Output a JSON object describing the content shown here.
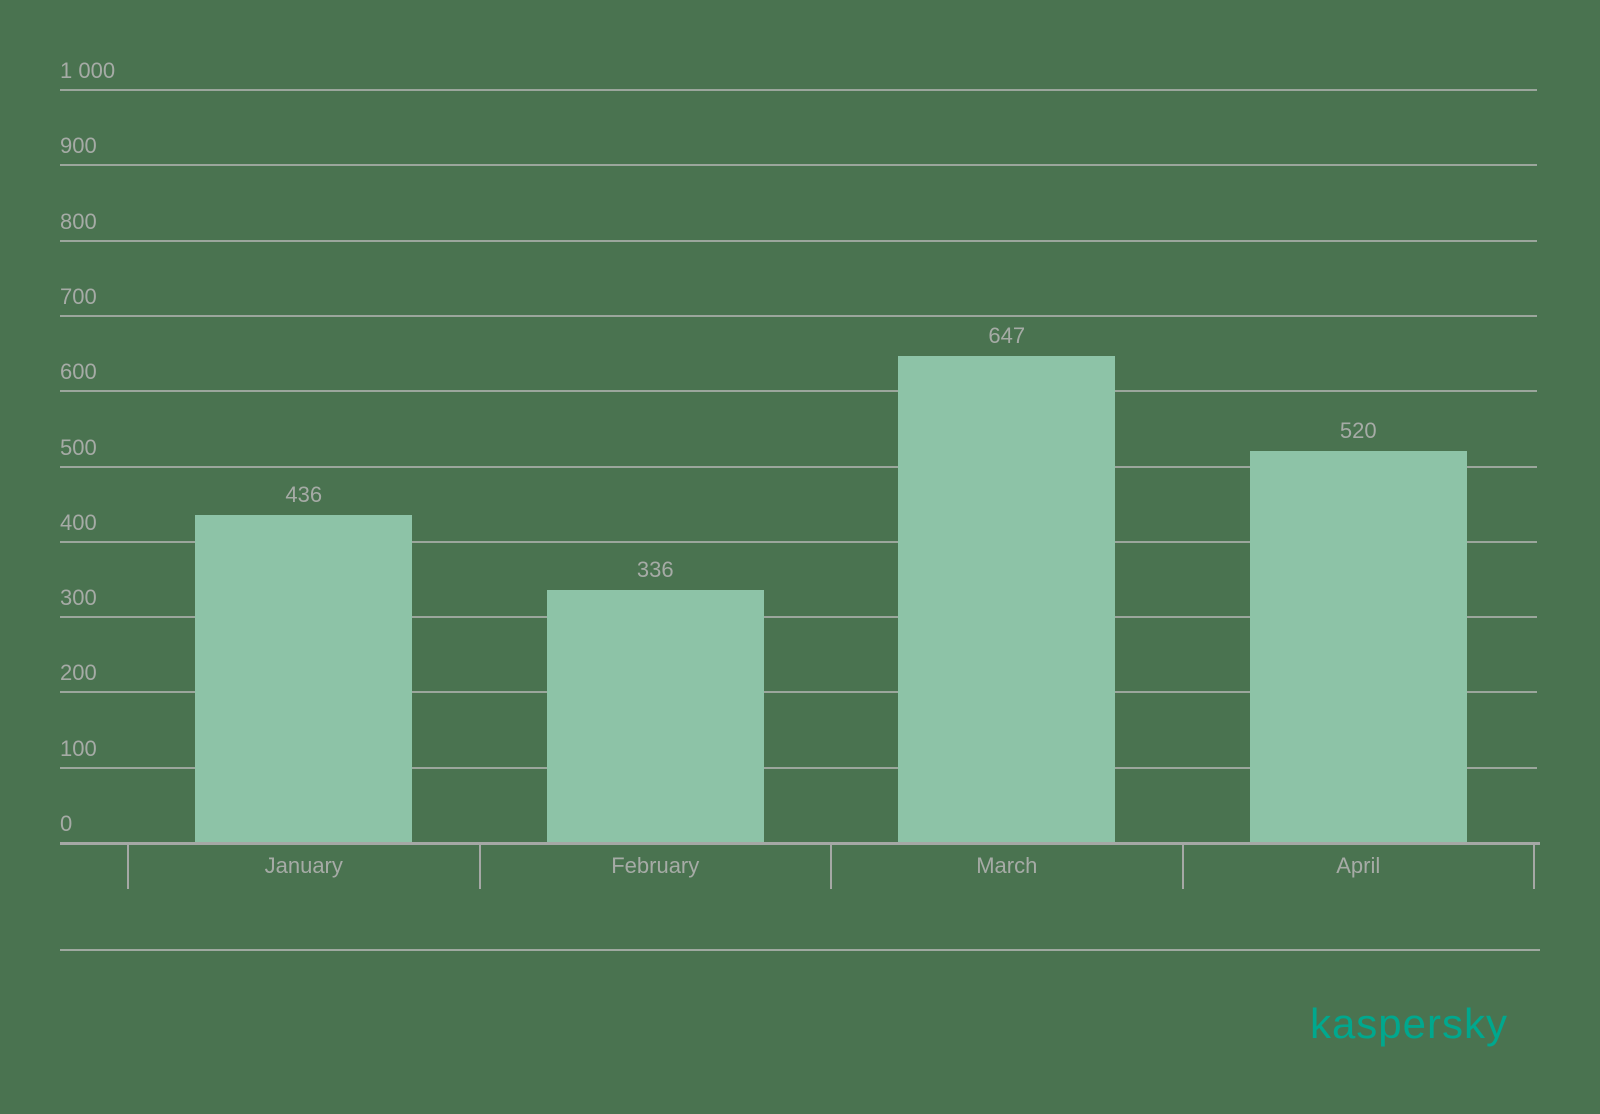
{
  "chart_data": {
    "type": "bar",
    "categories": [
      "January",
      "February",
      "March",
      "April"
    ],
    "values": [
      436,
      336,
      647,
      520
    ],
    "value_labels": [
      "436",
      "336",
      "647",
      "520"
    ],
    "title": "",
    "xlabel": "",
    "ylabel": "",
    "ylim": [
      0,
      1000
    ],
    "ytick_interval": 100,
    "ytick_labels": [
      "0",
      "100",
      "200",
      "300",
      "400",
      "500",
      "600",
      "700",
      "800",
      "900",
      "1 000"
    ],
    "grid": true,
    "legend_position": "none",
    "colors": {
      "background": "#4A7350",
      "bar": "#8DC3A7",
      "gridline": "#A9AFA9",
      "axis": "#A5A8A5",
      "text": "#A6ABA6"
    }
  },
  "branding": {
    "logo_text": "kaspersky",
    "logo_color": "#00A88E"
  }
}
